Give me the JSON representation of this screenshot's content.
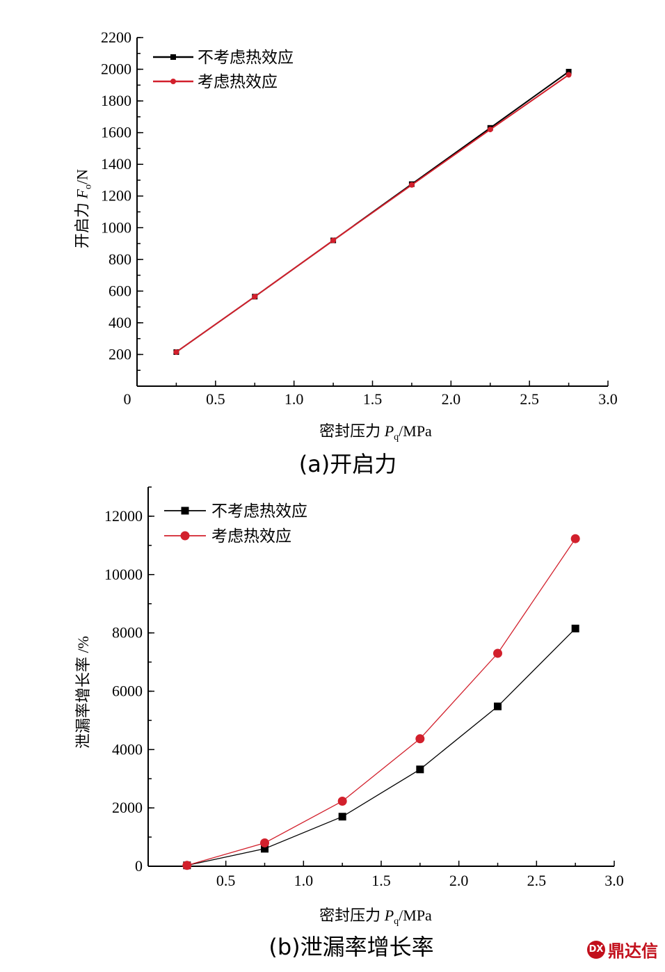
{
  "chart_data": [
    {
      "type": "line",
      "caption": "(a)开启力",
      "ylabel_text": "开启力 ",
      "ylabel_sym": "F",
      "ylabel_sub": "o",
      "ylabel_unit": "/N",
      "xlabel_text": "密封压力 ",
      "xlabel_sym": "P",
      "xlabel_sub": "q",
      "xlabel_unit": "/MPa",
      "xlim": [
        0,
        3.0
      ],
      "ylim": [
        0,
        2200
      ],
      "x_ticks": [
        "0",
        "0.5",
        "1.0",
        "1.5",
        "2.0",
        "2.5",
        "3.0"
      ],
      "y_ticks": [
        "200",
        "400",
        "600",
        "800",
        "1000",
        "1200",
        "1400",
        "1600",
        "1800",
        "2000",
        "2200"
      ],
      "legend_position": "top-left",
      "x": [
        0.25,
        0.75,
        1.25,
        1.75,
        2.25,
        2.75
      ],
      "series": [
        {
          "name": "不考虑热效应",
          "color": "#000000",
          "marker": "square",
          "values": [
            215,
            565,
            920,
            1275,
            1630,
            1985
          ]
        },
        {
          "name": "考虑热效应",
          "color": "#d2202c",
          "marker": "circle",
          "values": [
            215,
            565,
            920,
            1270,
            1620,
            1965
          ]
        }
      ]
    },
    {
      "type": "line",
      "caption": "(b)泄漏率增长率",
      "ylabel_text": "泄漏率增长率 /%",
      "ylabel_sym": "",
      "ylabel_sub": "",
      "ylabel_unit": "",
      "xlabel_text": "密封压力 ",
      "xlabel_sym": "P",
      "xlabel_sub": "q",
      "xlabel_unit": "/MPa",
      "xlim": [
        0,
        3.0
      ],
      "ylim": [
        0,
        13000
      ],
      "x_ticks": [
        "0.5",
        "1.0",
        "1.5",
        "2.0",
        "2.5",
        "3.0"
      ],
      "y_ticks": [
        "0",
        "2000",
        "4000",
        "6000",
        "8000",
        "10000",
        "12000"
      ],
      "legend_position": "top-left",
      "x": [
        0.25,
        0.75,
        1.25,
        1.75,
        2.25,
        2.75
      ],
      "series": [
        {
          "name": "不考虑热效应",
          "color": "#000000",
          "marker": "square",
          "values": [
            30,
            600,
            1700,
            3320,
            5480,
            8150
          ]
        },
        {
          "name": "考虑热效应",
          "color": "#d2202c",
          "marker": "circle",
          "values": [
            30,
            800,
            2230,
            4370,
            7300,
            11230
          ]
        }
      ]
    }
  ],
  "watermark": {
    "logo_text": "DX",
    "text": "鼎达信"
  }
}
